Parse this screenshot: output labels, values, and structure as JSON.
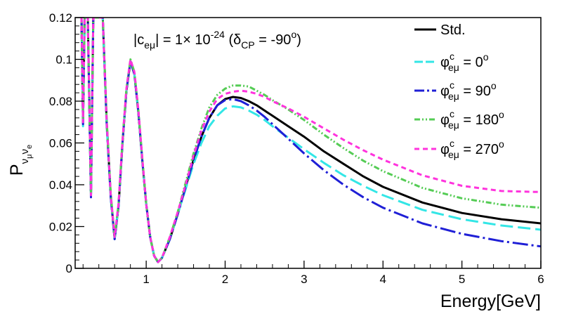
{
  "chart_data": {
    "type": "line",
    "xlabel": "Energy[GeV]",
    "ylabel": {
      "base": "P",
      "sub1": "ν",
      "subsub1": "μ",
      "sub2": "ν",
      "subsub2": "e"
    },
    "xlim": [
      0.1,
      6
    ],
    "ylim": [
      0,
      0.12
    ],
    "xticks": [
      1,
      2,
      3,
      4,
      5,
      6
    ],
    "xtick_labels": [
      "1",
      "2",
      "3",
      "4",
      "5",
      "6"
    ],
    "yticks": [
      0,
      0.02,
      0.04,
      0.06,
      0.08,
      0.1,
      0.12
    ],
    "ytick_labels": [
      "0",
      "0.02",
      "0.04",
      "0.06",
      "0.08",
      "0.1",
      "0.12"
    ],
    "annotation": {
      "part1": "|c",
      "sub": "eμ",
      "part2": "| = 1",
      "times": "×",
      "part3": " 10",
      "exp": "-24",
      "part4": " (δ",
      "sub2": "CP",
      "part5": " = -90",
      "deg": "o",
      "part6": ")"
    },
    "series": [
      {
        "name": "Std.",
        "legend": {
          "text": "Std."
        },
        "color": "#000000",
        "dash": "",
        "x": [
          0.18,
          0.2,
          0.22,
          0.26,
          0.3,
          0.33,
          0.36,
          0.4,
          0.45,
          0.5,
          0.55,
          0.6,
          0.65,
          0.7,
          0.75,
          0.8,
          0.85,
          0.9,
          0.95,
          1.0,
          1.05,
          1.1,
          1.15,
          1.2,
          1.3,
          1.4,
          1.5,
          1.6,
          1.7,
          1.8,
          1.9,
          2.0,
          2.1,
          2.2,
          2.3,
          2.4,
          2.5,
          2.6,
          2.8,
          3.0,
          3.25,
          3.5,
          3.75,
          4.0,
          4.5,
          5.0,
          5.5,
          6.0
        ],
        "y": [
          0.12,
          0.07,
          0.12,
          0.12,
          0.035,
          0.12,
          0.12,
          0.12,
          0.12,
          0.07,
          0.035,
          0.014,
          0.03,
          0.06,
          0.085,
          0.099,
          0.093,
          0.075,
          0.052,
          0.031,
          0.015,
          0.006,
          0.003,
          0.005,
          0.014,
          0.026,
          0.039,
          0.052,
          0.063,
          0.072,
          0.078,
          0.081,
          0.082,
          0.0815,
          0.08,
          0.078,
          0.0755,
          0.073,
          0.068,
          0.063,
          0.056,
          0.05,
          0.044,
          0.039,
          0.0315,
          0.0265,
          0.0235,
          0.0215
        ]
      },
      {
        "name": "φ0",
        "legend": {
          "text": "φ",
          "sup": "c",
          "sub": "eμ",
          "val": " = 0",
          "deg": "o"
        },
        "color": "#33e6e6",
        "dash": "18,7",
        "x": [
          0.18,
          0.2,
          0.22,
          0.26,
          0.3,
          0.33,
          0.36,
          0.4,
          0.45,
          0.5,
          0.55,
          0.6,
          0.65,
          0.7,
          0.75,
          0.8,
          0.85,
          0.9,
          0.95,
          1.0,
          1.05,
          1.1,
          1.15,
          1.2,
          1.3,
          1.4,
          1.5,
          1.6,
          1.7,
          1.8,
          1.9,
          2.0,
          2.1,
          2.2,
          2.3,
          2.4,
          2.5,
          2.6,
          2.8,
          3.0,
          3.25,
          3.5,
          3.75,
          4.0,
          4.5,
          5.0,
          5.5,
          6.0
        ],
        "y": [
          0.12,
          0.068,
          0.12,
          0.12,
          0.034,
          0.12,
          0.12,
          0.12,
          0.12,
          0.068,
          0.034,
          0.014,
          0.03,
          0.06,
          0.085,
          0.099,
          0.093,
          0.075,
          0.052,
          0.031,
          0.015,
          0.006,
          0.003,
          0.005,
          0.014,
          0.026,
          0.038,
          0.05,
          0.06,
          0.068,
          0.073,
          0.0765,
          0.0775,
          0.077,
          0.0755,
          0.0735,
          0.071,
          0.068,
          0.0625,
          0.057,
          0.0505,
          0.0445,
          0.0395,
          0.035,
          0.028,
          0.0235,
          0.0205,
          0.0185
        ]
      },
      {
        "name": "φ90",
        "legend": {
          "text": "φ",
          "sup": "c",
          "sub": "eμ",
          "val": " = 90",
          "deg": "o"
        },
        "color": "#1f1fd6",
        "dash": "22,5,3,5",
        "x": [
          0.18,
          0.2,
          0.22,
          0.26,
          0.3,
          0.33,
          0.36,
          0.4,
          0.45,
          0.5,
          0.55,
          0.6,
          0.65,
          0.7,
          0.75,
          0.8,
          0.85,
          0.9,
          0.95,
          1.0,
          1.05,
          1.1,
          1.15,
          1.2,
          1.3,
          1.4,
          1.5,
          1.6,
          1.7,
          1.8,
          1.9,
          2.0,
          2.1,
          2.2,
          2.3,
          2.4,
          2.5,
          2.6,
          2.8,
          3.0,
          3.25,
          3.5,
          3.75,
          4.0,
          4.5,
          5.0,
          5.5,
          6.0
        ],
        "y": [
          0.12,
          0.069,
          0.12,
          0.12,
          0.034,
          0.12,
          0.12,
          0.12,
          0.12,
          0.069,
          0.034,
          0.014,
          0.03,
          0.06,
          0.085,
          0.099,
          0.093,
          0.075,
          0.052,
          0.031,
          0.015,
          0.006,
          0.003,
          0.005,
          0.014,
          0.026,
          0.039,
          0.052,
          0.063,
          0.072,
          0.078,
          0.0805,
          0.081,
          0.08,
          0.078,
          0.0755,
          0.0725,
          0.069,
          0.062,
          0.055,
          0.047,
          0.04,
          0.034,
          0.029,
          0.0215,
          0.0165,
          0.013,
          0.0105
        ]
      },
      {
        "name": "φ180",
        "legend": {
          "text": "φ",
          "sup": "c",
          "sub": "eμ",
          "val": " = 180",
          "deg": "o"
        },
        "color": "#55cc55",
        "dash": "8,3,2,3,2,3",
        "x": [
          0.18,
          0.2,
          0.22,
          0.26,
          0.3,
          0.33,
          0.36,
          0.4,
          0.45,
          0.5,
          0.55,
          0.6,
          0.65,
          0.7,
          0.75,
          0.8,
          0.85,
          0.9,
          0.95,
          1.0,
          1.05,
          1.1,
          1.15,
          1.2,
          1.3,
          1.4,
          1.5,
          1.6,
          1.7,
          1.8,
          1.9,
          2.0,
          2.1,
          2.2,
          2.3,
          2.4,
          2.5,
          2.6,
          2.8,
          3.0,
          3.25,
          3.5,
          3.75,
          4.0,
          4.5,
          5.0,
          5.5,
          6.0
        ],
        "y": [
          0.12,
          0.071,
          0.12,
          0.12,
          0.036,
          0.12,
          0.12,
          0.12,
          0.12,
          0.071,
          0.036,
          0.015,
          0.031,
          0.061,
          0.086,
          0.1,
          0.094,
          0.076,
          0.053,
          0.031,
          0.015,
          0.006,
          0.003,
          0.005,
          0.015,
          0.027,
          0.041,
          0.055,
          0.067,
          0.077,
          0.083,
          0.086,
          0.0875,
          0.0875,
          0.087,
          0.085,
          0.083,
          0.0805,
          0.076,
          0.071,
          0.064,
          0.0575,
          0.0515,
          0.0465,
          0.0385,
          0.0335,
          0.0305,
          0.029
        ]
      },
      {
        "name": "φ270",
        "legend": {
          "text": "φ",
          "sup": "c",
          "sub": "eμ",
          "val": " = 270",
          "deg": "o"
        },
        "color": "#ff33dd",
        "dash": "7,5",
        "x": [
          0.18,
          0.2,
          0.22,
          0.26,
          0.3,
          0.33,
          0.36,
          0.4,
          0.45,
          0.5,
          0.55,
          0.6,
          0.65,
          0.7,
          0.75,
          0.8,
          0.85,
          0.9,
          0.95,
          1.0,
          1.05,
          1.1,
          1.15,
          1.2,
          1.3,
          1.4,
          1.5,
          1.6,
          1.7,
          1.8,
          1.9,
          2.0,
          2.1,
          2.2,
          2.3,
          2.4,
          2.5,
          2.6,
          2.8,
          3.0,
          3.25,
          3.5,
          3.75,
          4.0,
          4.5,
          5.0,
          5.5,
          6.0
        ],
        "y": [
          0.12,
          0.07,
          0.12,
          0.12,
          0.035,
          0.12,
          0.12,
          0.12,
          0.12,
          0.07,
          0.035,
          0.015,
          0.031,
          0.061,
          0.086,
          0.1,
          0.094,
          0.076,
          0.053,
          0.031,
          0.015,
          0.006,
          0.003,
          0.005,
          0.015,
          0.027,
          0.04,
          0.054,
          0.066,
          0.075,
          0.081,
          0.0835,
          0.0845,
          0.085,
          0.0845,
          0.0835,
          0.082,
          0.08,
          0.0765,
          0.0725,
          0.067,
          0.0615,
          0.0565,
          0.052,
          0.0445,
          0.0395,
          0.037,
          0.0365
        ]
      }
    ]
  }
}
